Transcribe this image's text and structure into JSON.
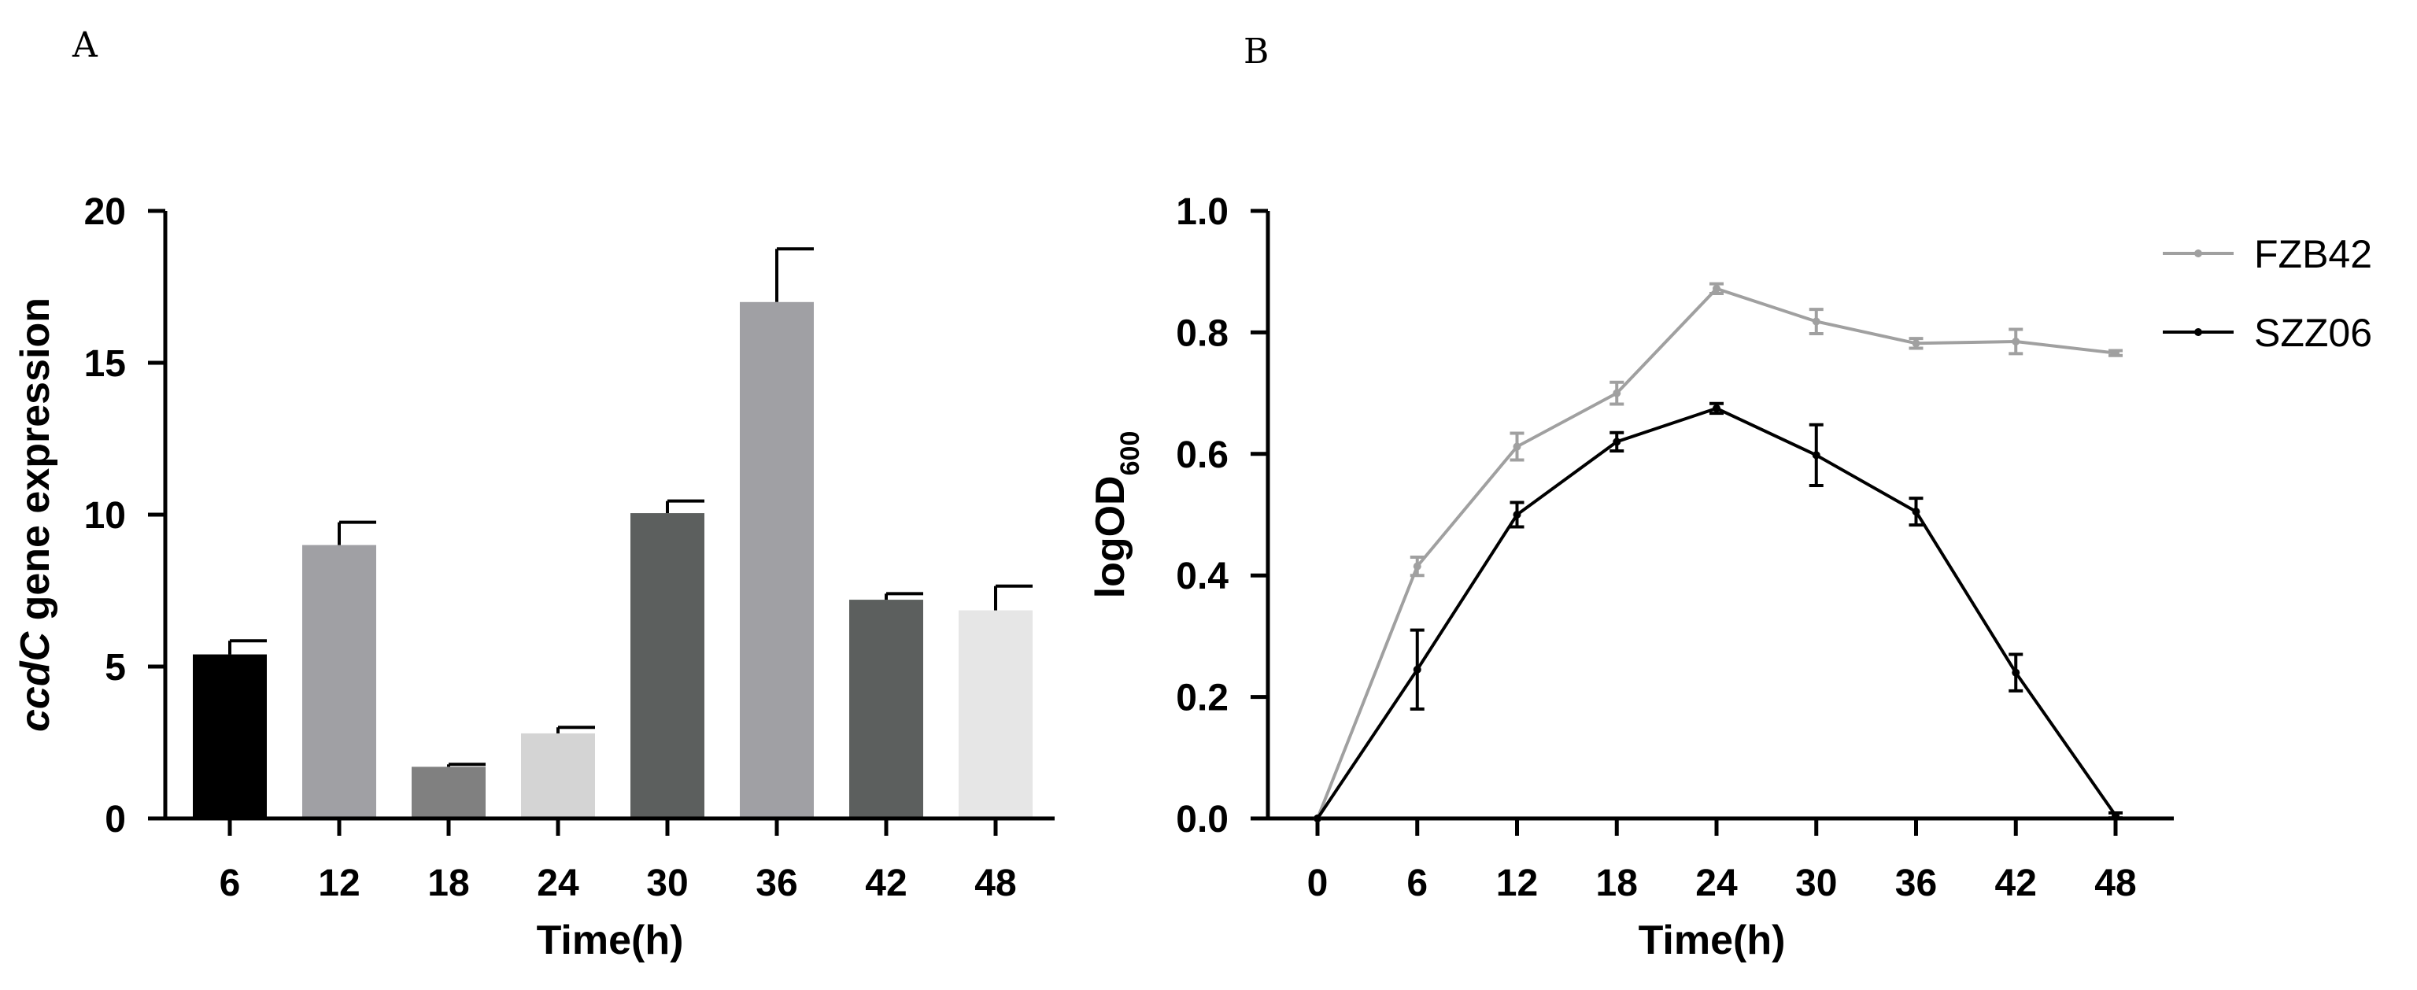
{
  "chart_data": [
    {
      "panel": "A",
      "type": "bar",
      "categories": [
        "6",
        "12",
        "18",
        "24",
        "30",
        "36",
        "42",
        "48"
      ],
      "values": [
        5.4,
        9.0,
        1.7,
        2.8,
        10.05,
        17.0,
        7.2,
        6.85
      ],
      "errors": [
        0.45,
        0.75,
        0.08,
        0.2,
        0.4,
        1.75,
        0.2,
        0.8
      ],
      "colors": [
        "#000000",
        "#a0a0a4",
        "#808080",
        "#d4d4d4",
        "#5c5f5e",
        "#a0a0a4",
        "#5c5f5e",
        "#e6e6e6"
      ],
      "xlabel": "Time(h)",
      "ylabel_italic": "ccdC",
      "ylabel_rest": " gene expression",
      "ylim": [
        0,
        20
      ],
      "yticks": [
        0,
        5,
        10,
        15,
        20
      ]
    },
    {
      "panel": "B",
      "type": "line",
      "x": [
        0,
        6,
        12,
        18,
        24,
        30,
        36,
        42,
        48
      ],
      "series": [
        {
          "name": "FZB42",
          "color": "#a0a0a0",
          "values": [
            0.0,
            0.415,
            0.612,
            0.7,
            0.872,
            0.818,
            0.782,
            0.785,
            0.766
          ],
          "errors": [
            0.0,
            0.015,
            0.022,
            0.018,
            0.008,
            0.02,
            0.008,
            0.02,
            0.004
          ]
        },
        {
          "name": "SZZ06",
          "color": "#000000",
          "values": [
            0.0,
            0.245,
            0.5,
            0.62,
            0.675,
            0.598,
            0.505,
            0.24,
            0.005
          ],
          "errors": [
            0.0,
            0.065,
            0.02,
            0.015,
            0.008,
            0.05,
            0.022,
            0.03,
            0.004
          ]
        }
      ],
      "xlabel": "Time(h)",
      "ylabel_main": "logOD",
      "ylabel_sub": "600",
      "ylim": [
        0,
        1.0
      ],
      "yticks": [
        "0.0",
        "0.2",
        "0.4",
        "0.6",
        "0.8",
        "1.0"
      ],
      "legend_position": "top-right"
    }
  ]
}
